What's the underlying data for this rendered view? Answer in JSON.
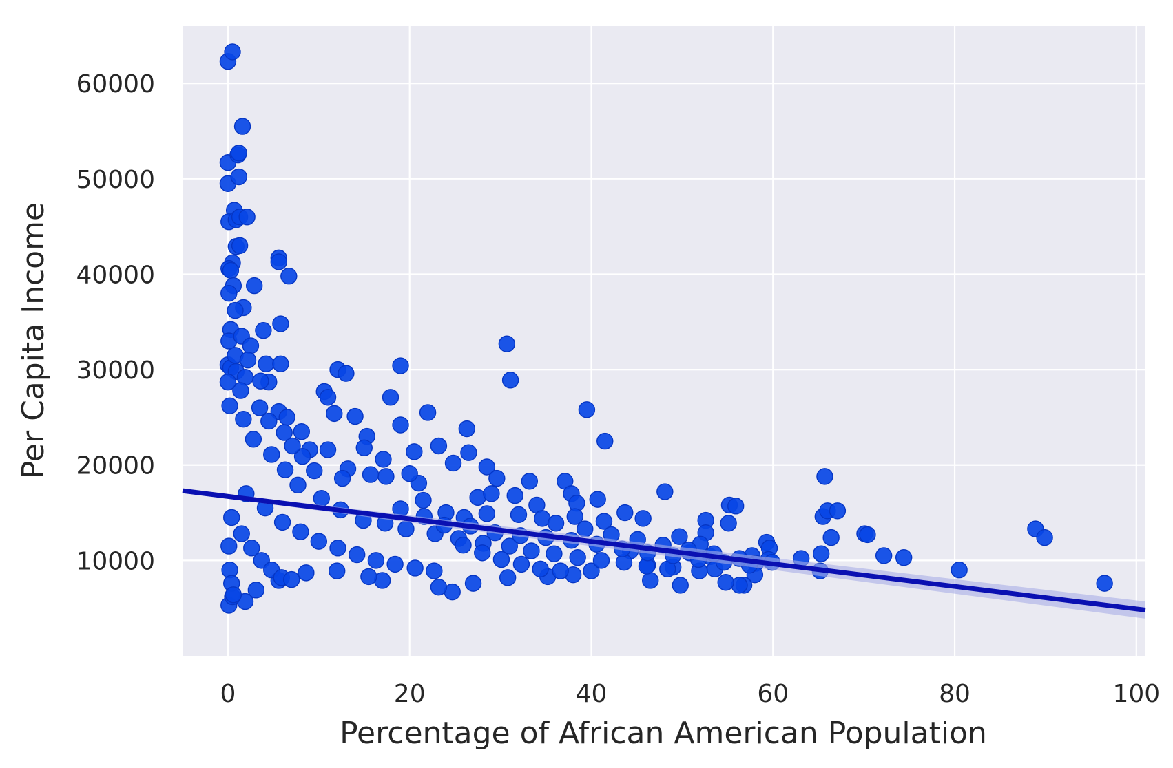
{
  "chart_data": {
    "type": "scatter",
    "title": "",
    "xlabel": "Percentage of African American Population",
    "ylabel": "Per Capita Income",
    "xlim": [
      -5,
      101
    ],
    "ylim": [
      0,
      66000
    ],
    "xticks": [
      0,
      20,
      40,
      60,
      80,
      100
    ],
    "yticks": [
      10000,
      20000,
      30000,
      40000,
      50000,
      60000
    ],
    "xtick_labels": [
      "0",
      "20",
      "40",
      "60",
      "80",
      "100"
    ],
    "ytick_labels": [
      "10000",
      "20000",
      "30000",
      "40000",
      "50000",
      "60000"
    ],
    "grid": true,
    "legend": "none",
    "colors": {
      "background": "#EAEAF2",
      "grid": "#FFFFFF",
      "points": "#0847E6",
      "point_edge": "#0636C4",
      "fit_line": "#0A10B2",
      "confidence_band": "#A9AEE6",
      "text": "#262626"
    },
    "regression": {
      "x": [
        -5,
        101
      ],
      "y": [
        17300,
        4800
      ],
      "ci_lower": [
        17100,
        3900
      ],
      "ci_upper": [
        17500,
        5700
      ]
    },
    "series": [
      {
        "points": [
          [
            0.0,
            62300
          ],
          [
            0.5,
            63300
          ],
          [
            0.0,
            49500
          ],
          [
            0.0,
            51700
          ],
          [
            1.1,
            52500
          ],
          [
            1.2,
            52700
          ],
          [
            1.6,
            55500
          ],
          [
            1.2,
            50200
          ],
          [
            0.7,
            46700
          ],
          [
            0.1,
            45500
          ],
          [
            0.9,
            45700
          ],
          [
            1.3,
            46000
          ],
          [
            2.1,
            46000
          ],
          [
            0.9,
            42900
          ],
          [
            1.3,
            43000
          ],
          [
            0.5,
            41200
          ],
          [
            0.1,
            40600
          ],
          [
            0.3,
            40400
          ],
          [
            0.6,
            38800
          ],
          [
            0.1,
            38000
          ],
          [
            2.9,
            38800
          ],
          [
            5.6,
            41700
          ],
          [
            5.6,
            41300
          ],
          [
            6.7,
            39800
          ],
          [
            1.7,
            36500
          ],
          [
            0.8,
            36200
          ],
          [
            0.3,
            34200
          ],
          [
            5.8,
            34800
          ],
          [
            3.9,
            34100
          ],
          [
            0.1,
            33000
          ],
          [
            1.5,
            33500
          ],
          [
            2.5,
            32500
          ],
          [
            0.0,
            30500
          ],
          [
            0.3,
            30200
          ],
          [
            0.9,
            29800
          ],
          [
            1.9,
            29200
          ],
          [
            4.2,
            30600
          ],
          [
            5.8,
            30600
          ],
          [
            4.5,
            28700
          ],
          [
            12.1,
            30000
          ],
          [
            13.0,
            29600
          ],
          [
            19.0,
            30400
          ],
          [
            30.7,
            32700
          ],
          [
            31.1,
            28900
          ],
          [
            10.6,
            27700
          ],
          [
            11.0,
            27100
          ],
          [
            17.9,
            27100
          ],
          [
            11.7,
            25400
          ],
          [
            14.0,
            25100
          ],
          [
            22.0,
            25500
          ],
          [
            39.5,
            25800
          ],
          [
            41.5,
            22500
          ],
          [
            5.6,
            25600
          ],
          [
            6.5,
            25000
          ],
          [
            8.1,
            23500
          ],
          [
            15.3,
            23000
          ],
          [
            26.3,
            23800
          ],
          [
            19.0,
            24200
          ],
          [
            9.0,
            21600
          ],
          [
            11.0,
            21600
          ],
          [
            15.0,
            21800
          ],
          [
            20.5,
            21400
          ],
          [
            23.2,
            22000
          ],
          [
            26.5,
            21300
          ],
          [
            24.8,
            20200
          ],
          [
            28.5,
            19800
          ],
          [
            29.6,
            18600
          ],
          [
            33.2,
            18300
          ],
          [
            37.1,
            18300
          ],
          [
            37.8,
            17000
          ],
          [
            38.4,
            16000
          ],
          [
            40.7,
            16400
          ],
          [
            48.1,
            17200
          ],
          [
            65.7,
            18800
          ],
          [
            65.5,
            14600
          ],
          [
            66.0,
            15200
          ],
          [
            67.1,
            15200
          ],
          [
            66.4,
            12400
          ],
          [
            65.3,
            10700
          ],
          [
            65.2,
            8900
          ],
          [
            55.2,
            15800
          ],
          [
            55.9,
            15700
          ],
          [
            55.1,
            13900
          ],
          [
            52.6,
            14200
          ],
          [
            52.6,
            12900
          ],
          [
            49.7,
            12500
          ],
          [
            43.7,
            15000
          ],
          [
            45.7,
            14400
          ],
          [
            41.4,
            14100
          ],
          [
            38.2,
            14600
          ],
          [
            59.3,
            11900
          ],
          [
            59.6,
            11300
          ],
          [
            59.5,
            10100
          ],
          [
            59.9,
            9800
          ],
          [
            57.7,
            10500
          ],
          [
            58.1,
            9700
          ],
          [
            58.0,
            8500
          ],
          [
            56.8,
            7400
          ],
          [
            56.3,
            7400
          ],
          [
            54.8,
            7700
          ],
          [
            49.8,
            7400
          ],
          [
            46.5,
            7900
          ],
          [
            50.8,
            10800
          ],
          [
            52.0,
            11700
          ],
          [
            53.1,
            10400
          ],
          [
            53.6,
            9100
          ],
          [
            51.9,
            8900
          ],
          [
            49.0,
            9300
          ],
          [
            46.2,
            9500
          ],
          [
            44.3,
            11000
          ],
          [
            63.1,
            10200
          ],
          [
            70.1,
            12800
          ],
          [
            70.4,
            12700
          ],
          [
            72.2,
            10500
          ],
          [
            74.4,
            10300
          ],
          [
            80.5,
            9000
          ],
          [
            88.9,
            13300
          ],
          [
            89.9,
            12400
          ],
          [
            96.5,
            7600
          ],
          [
            30.8,
            8200
          ],
          [
            27.0,
            7600
          ],
          [
            24.7,
            6700
          ],
          [
            23.2,
            7200
          ],
          [
            17.0,
            7900
          ],
          [
            38.0,
            8500
          ],
          [
            40.0,
            8900
          ],
          [
            35.2,
            8300
          ],
          [
            1.9,
            5700
          ],
          [
            0.1,
            5300
          ],
          [
            0.5,
            6200
          ],
          [
            3.1,
            6900
          ],
          [
            5.6,
            7900
          ],
          [
            8.6,
            8700
          ],
          [
            12.0,
            8900
          ],
          [
            15.5,
            8300
          ],
          [
            34.0,
            15800
          ],
          [
            31.6,
            16800
          ],
          [
            32.0,
            14800
          ],
          [
            27.5,
            16600
          ],
          [
            29.0,
            17000
          ],
          [
            26.0,
            14500
          ],
          [
            21.0,
            18100
          ],
          [
            21.5,
            16300
          ],
          [
            20.0,
            19100
          ],
          [
            17.4,
            18800
          ],
          [
            17.1,
            20600
          ],
          [
            15.7,
            19000
          ],
          [
            13.2,
            19600
          ],
          [
            12.6,
            18600
          ],
          [
            9.5,
            19400
          ],
          [
            8.2,
            20900
          ],
          [
            7.1,
            22000
          ],
          [
            6.2,
            23400
          ],
          [
            4.5,
            24600
          ],
          [
            3.5,
            26000
          ],
          [
            1.4,
            27800
          ],
          [
            0.8,
            31500
          ],
          [
            2.2,
            31000
          ],
          [
            3.6,
            28800
          ],
          [
            0.2,
            26200
          ],
          [
            0.0,
            28700
          ],
          [
            1.7,
            24800
          ],
          [
            2.8,
            22700
          ],
          [
            4.8,
            21100
          ],
          [
            6.3,
            19500
          ],
          [
            7.7,
            17900
          ],
          [
            10.3,
            16500
          ],
          [
            12.4,
            15300
          ],
          [
            14.9,
            14200
          ],
          [
            17.3,
            13900
          ],
          [
            19.6,
            13300
          ],
          [
            22.8,
            12800
          ],
          [
            25.4,
            12300
          ],
          [
            28.1,
            11800
          ],
          [
            31.0,
            11500
          ],
          [
            33.4,
            11000
          ],
          [
            35.9,
            10700
          ],
          [
            38.5,
            10300
          ],
          [
            41.1,
            10000
          ],
          [
            43.6,
            9800
          ],
          [
            46.1,
            9400
          ],
          [
            48.4,
            9100
          ],
          [
            2.0,
            17000
          ],
          [
            4.1,
            15500
          ],
          [
            6.0,
            14000
          ],
          [
            8.0,
            13000
          ],
          [
            10.0,
            12000
          ],
          [
            12.1,
            11300
          ],
          [
            14.2,
            10600
          ],
          [
            16.3,
            10000
          ],
          [
            18.4,
            9600
          ],
          [
            20.6,
            9200
          ],
          [
            22.7,
            8900
          ],
          [
            0.4,
            14500
          ],
          [
            1.5,
            12800
          ],
          [
            2.6,
            11300
          ],
          [
            3.7,
            10000
          ],
          [
            4.8,
            9000
          ],
          [
            5.9,
            8200
          ],
          [
            7.0,
            8000
          ],
          [
            0.1,
            11500
          ],
          [
            0.2,
            9000
          ],
          [
            0.4,
            7600
          ],
          [
            0.6,
            6400
          ],
          [
            24.0,
            15000
          ],
          [
            26.7,
            13600
          ],
          [
            29.4,
            12900
          ],
          [
            32.2,
            12600
          ],
          [
            35.0,
            12400
          ],
          [
            37.8,
            12100
          ],
          [
            40.6,
            11700
          ],
          [
            43.4,
            11200
          ],
          [
            46.2,
            10800
          ],
          [
            49.0,
            10500
          ],
          [
            51.8,
            10100
          ],
          [
            54.6,
            9800
          ],
          [
            57.4,
            9500
          ],
          [
            28.5,
            14900
          ],
          [
            34.6,
            14400
          ],
          [
            36.1,
            13900
          ],
          [
            39.3,
            13300
          ],
          [
            42.2,
            12700
          ],
          [
            45.1,
            12200
          ],
          [
            47.9,
            11600
          ],
          [
            50.7,
            11100
          ],
          [
            53.5,
            10700
          ],
          [
            56.3,
            10200
          ],
          [
            19.0,
            15400
          ],
          [
            21.6,
            14600
          ],
          [
            23.8,
            13700
          ],
          [
            25.9,
            11600
          ],
          [
            28.0,
            10800
          ],
          [
            30.1,
            10100
          ],
          [
            32.3,
            9600
          ],
          [
            34.4,
            9100
          ],
          [
            36.6,
            8900
          ]
        ]
      }
    ]
  }
}
